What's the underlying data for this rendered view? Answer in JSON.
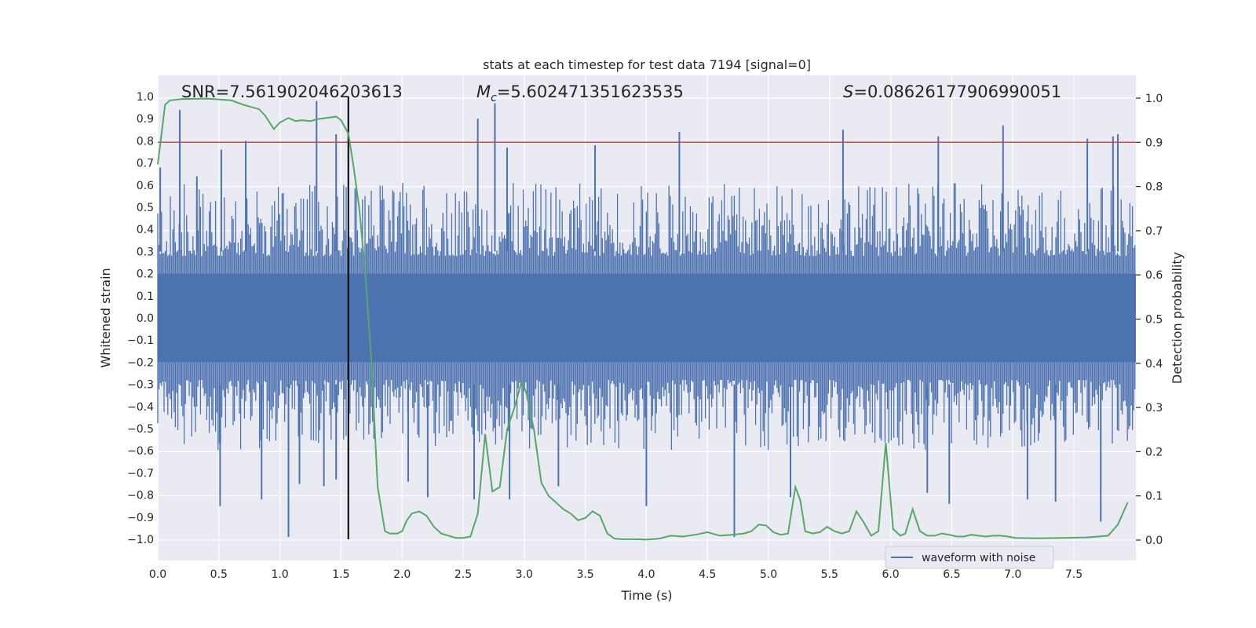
{
  "chart_data": {
    "type": "line",
    "title": "stats at each timestep for test data 7194 [signal=0]",
    "xlabel": "Time (s)",
    "ylabel": "Whitened strain",
    "ylabel_right": "Detection probability",
    "xlim": [
      0.0,
      8.0
    ],
    "ylim": [
      -1.1,
      1.1
    ],
    "ylim_right": [
      -0.05,
      1.05
    ],
    "x_ticks": [
      0.0,
      0.5,
      1.0,
      1.5,
      2.0,
      2.5,
      3.0,
      3.5,
      4.0,
      4.5,
      5.0,
      5.5,
      6.0,
      6.5,
      7.0,
      7.5
    ],
    "x_tick_labels": [
      "0.0",
      "0.5",
      "1.0",
      "1.5",
      "2.0",
      "2.5",
      "3.0",
      "3.5",
      "4.0",
      "4.5",
      "5.0",
      "5.5",
      "6.0",
      "6.5",
      "7.0",
      "7.5"
    ],
    "y_ticks": [
      1.0,
      0.9,
      0.8,
      0.7,
      0.6,
      0.5,
      0.4,
      0.3,
      0.2,
      0.1,
      0.0,
      -0.1,
      -0.2,
      -0.3,
      -0.4,
      -0.5,
      -0.6,
      -0.7,
      -0.8,
      -0.9,
      -1.0
    ],
    "y_tick_labels": [
      "1.0",
      "0.9",
      "0.8",
      "0.7",
      "0.6",
      "0.5",
      "0.4",
      "0.3",
      "0.2",
      "0.1",
      "0.0",
      "−0.1",
      "−0.2",
      "−0.3",
      "−0.4",
      "−0.5",
      "−0.6",
      "−0.7",
      "−0.8",
      "−0.9",
      "−1.0"
    ],
    "y_right_ticks": [
      1.0,
      0.9,
      0.8,
      0.7,
      0.6,
      0.5,
      0.4,
      0.3,
      0.2,
      0.1,
      0.0
    ],
    "y_right_tick_labels": [
      "1.0",
      "0.9",
      "0.8",
      "0.7",
      "0.6",
      "0.5",
      "0.4",
      "0.3",
      "0.2",
      "0.1",
      "0.0"
    ],
    "annotations": {
      "snr": "SNR=7.561902046203613",
      "mc_symbol": "M",
      "mc_sub": "c",
      "mc_value": "=5.602471351623535",
      "s_symbol": "S",
      "s_value": "=0.08626177906990051"
    },
    "threshold_probability": 0.9,
    "marker_time": 1.56,
    "marker_range": [
      -1.0,
      1.0
    ],
    "legend": {
      "label": "waveform with noise",
      "location": "lower right"
    },
    "series": [
      {
        "name": "waveform with noise",
        "color": "#4c72b0",
        "axis": "left",
        "style": "dense noise, spikes",
        "peak_spikes": [
          {
            "t": 0.02,
            "v": 0.68
          },
          {
            "t": 0.18,
            "v": 0.94
          },
          {
            "t": 0.32,
            "v": 0.64
          },
          {
            "t": 0.52,
            "v": 0.76
          },
          {
            "t": 0.72,
            "v": 0.8
          },
          {
            "t": 1.3,
            "v": 0.98
          },
          {
            "t": 1.46,
            "v": 0.83
          },
          {
            "t": 2.62,
            "v": 0.9
          },
          {
            "t": 2.76,
            "v": 0.97
          },
          {
            "t": 2.86,
            "v": 0.77
          },
          {
            "t": 3.58,
            "v": 0.78
          },
          {
            "t": 4.27,
            "v": 0.84
          },
          {
            "t": 5.61,
            "v": 0.85
          },
          {
            "t": 6.39,
            "v": 0.82
          },
          {
            "t": 6.92,
            "v": 0.87
          },
          {
            "t": 7.61,
            "v": 0.81
          },
          {
            "t": 7.82,
            "v": 0.82
          },
          {
            "t": 7.86,
            "v": 0.83
          }
        ],
        "trough_spikes": [
          {
            "t": 0.51,
            "v": -0.85
          },
          {
            "t": 0.85,
            "v": -0.82
          },
          {
            "t": 1.07,
            "v": -0.99
          },
          {
            "t": 1.16,
            "v": -0.75
          },
          {
            "t": 1.36,
            "v": -0.76
          },
          {
            "t": 1.46,
            "v": -0.73
          },
          {
            "t": 2.05,
            "v": -0.74
          },
          {
            "t": 2.21,
            "v": -0.81
          },
          {
            "t": 2.59,
            "v": -0.82
          },
          {
            "t": 2.88,
            "v": -0.82
          },
          {
            "t": 3.28,
            "v": -0.76
          },
          {
            "t": 4.0,
            "v": -0.85
          },
          {
            "t": 4.72,
            "v": -0.99
          },
          {
            "t": 5.18,
            "v": -0.81
          },
          {
            "t": 6.3,
            "v": -0.79
          },
          {
            "t": 6.48,
            "v": -0.84
          },
          {
            "t": 7.12,
            "v": -0.82
          },
          {
            "t": 7.35,
            "v": -0.83
          },
          {
            "t": 7.72,
            "v": -0.92
          }
        ]
      },
      {
        "name": "detection probability",
        "color": "#55a868",
        "axis": "right",
        "x": [
          0.0,
          0.06,
          0.1,
          0.2,
          0.4,
          0.6,
          0.7,
          0.83,
          0.88,
          0.95,
          1.0,
          1.07,
          1.13,
          1.18,
          1.25,
          1.3,
          1.38,
          1.46,
          1.5,
          1.56,
          1.6,
          1.65,
          1.7,
          1.75,
          1.8,
          1.86,
          1.9,
          1.96,
          2.0,
          2.04,
          2.08,
          2.14,
          2.2,
          2.26,
          2.32,
          2.38,
          2.44,
          2.5,
          2.56,
          2.62,
          2.68,
          2.74,
          2.8,
          2.86,
          2.92,
          2.98,
          3.02,
          3.08,
          3.14,
          3.2,
          3.26,
          3.32,
          3.38,
          3.44,
          3.5,
          3.56,
          3.62,
          3.68,
          3.74,
          3.8,
          3.9,
          4.0,
          4.1,
          4.2,
          4.3,
          4.4,
          4.5,
          4.6,
          4.7,
          4.8,
          4.86,
          4.92,
          4.98,
          5.04,
          5.1,
          5.16,
          5.22,
          5.26,
          5.3,
          5.36,
          5.42,
          5.48,
          5.54,
          5.6,
          5.66,
          5.72,
          5.78,
          5.84,
          5.9,
          5.96,
          6.02,
          6.08,
          6.12,
          6.18,
          6.24,
          6.3,
          6.36,
          6.42,
          6.48,
          6.54,
          6.6,
          6.66,
          6.72,
          6.78,
          6.84,
          6.9,
          6.96,
          7.02,
          7.2,
          7.4,
          7.6,
          7.7,
          7.78,
          7.86,
          7.94
        ],
        "values": [
          0.85,
          0.985,
          0.995,
          0.998,
          0.999,
          0.995,
          0.985,
          0.975,
          0.96,
          0.93,
          0.945,
          0.955,
          0.948,
          0.95,
          0.948,
          0.952,
          0.955,
          0.958,
          0.95,
          0.92,
          0.85,
          0.75,
          0.6,
          0.4,
          0.12,
          0.02,
          0.015,
          0.015,
          0.02,
          0.045,
          0.06,
          0.065,
          0.055,
          0.03,
          0.015,
          0.01,
          0.005,
          0.005,
          0.008,
          0.06,
          0.24,
          0.11,
          0.12,
          0.25,
          0.3,
          0.36,
          0.33,
          0.25,
          0.13,
          0.1,
          0.085,
          0.07,
          0.06,
          0.045,
          0.05,
          0.065,
          0.055,
          0.015,
          0.003,
          0.002,
          0.002,
          0.001,
          0.003,
          0.01,
          0.008,
          0.012,
          0.018,
          0.01,
          0.012,
          0.015,
          0.02,
          0.035,
          0.033,
          0.018,
          0.012,
          0.015,
          0.12,
          0.09,
          0.02,
          0.015,
          0.018,
          0.03,
          0.02,
          0.015,
          0.02,
          0.065,
          0.04,
          0.01,
          0.02,
          0.22,
          0.025,
          0.01,
          0.015,
          0.07,
          0.02,
          0.01,
          0.01,
          0.015,
          0.012,
          0.008,
          0.008,
          0.012,
          0.01,
          0.008,
          0.01,
          0.01,
          0.008,
          0.005,
          0.004,
          0.005,
          0.006,
          0.008,
          0.01,
          0.035,
          0.085
        ]
      }
    ]
  }
}
